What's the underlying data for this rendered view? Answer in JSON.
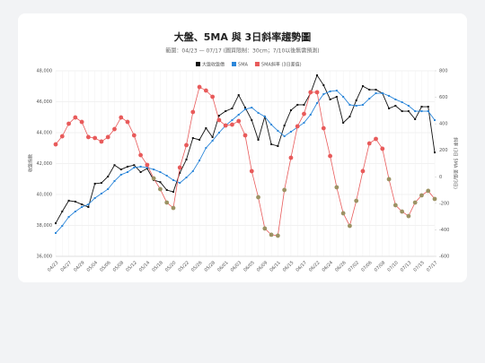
{
  "chart_data": {
    "type": "line",
    "title": "大盤、5MA 與 3日斜率趨勢圖",
    "subtitle": "範圍：04/23 — 07/17 (圖資限制：30cm；7/10以後無需預測)",
    "y_label": "收盤指數",
    "y2_label": "斜率 (3日 5MA 差值/3日)",
    "categories": [
      "04/23",
      null,
      "04/27",
      null,
      "04/29",
      null,
      "05/04",
      null,
      "05/06",
      null,
      "05/08",
      null,
      "05/12",
      null,
      "05/14",
      null,
      "05/18",
      null,
      "05/20",
      null,
      "05/22",
      null,
      "05/26",
      null,
      "05/28",
      null,
      "06/01",
      null,
      "06/03",
      null,
      "06/05",
      null,
      "06/09",
      null,
      "06/11",
      null,
      "06/15",
      null,
      "06/17",
      null,
      "06/22",
      null,
      "06/24",
      null,
      "06/26",
      null,
      "07/02",
      null,
      "07/06",
      null,
      "07/08",
      null,
      "07/10",
      null,
      "07/13",
      null,
      "07/15",
      null,
      "07/17"
    ],
    "series": [
      {
        "name": "大盤收盤價",
        "color": "#111111",
        "values": [
          38140,
          38900,
          39600,
          39540,
          39360,
          39190,
          40700,
          40750,
          41160,
          41900,
          41620,
          41800,
          41900,
          41450,
          41680,
          40930,
          40800,
          40290,
          40170,
          41400,
          42260,
          43650,
          43540,
          44290,
          43710,
          45100,
          45390,
          45570,
          46430,
          45620,
          44810,
          43540,
          45040,
          43250,
          43130,
          44460,
          45450,
          45800,
          45800,
          46550,
          47710,
          47070,
          46150,
          46320,
          44640,
          45040,
          46090,
          47010,
          46780,
          46780,
          46550,
          45570,
          45740,
          45390,
          45390,
          44870,
          45680,
          45680,
          42720
        ]
      },
      {
        "name": "5MA",
        "color": "#2b86d9",
        "values": [
          37510,
          37970,
          38550,
          38900,
          39190,
          39360,
          39770,
          40060,
          40350,
          40870,
          41280,
          41450,
          41740,
          41800,
          41740,
          41620,
          41450,
          41220,
          40930,
          40750,
          41100,
          41510,
          42200,
          43010,
          43480,
          44000,
          44460,
          44810,
          45160,
          45510,
          45620,
          45280,
          45040,
          44520,
          44120,
          43770,
          44060,
          44350,
          44640,
          45160,
          45910,
          46490,
          46670,
          46720,
          46320,
          45800,
          45740,
          45800,
          46200,
          46550,
          46550,
          46380,
          46150,
          45970,
          45740,
          45390,
          45390,
          45390,
          44810
        ]
      },
      {
        "name": "5MA斜率 (3日差值)",
        "color": "#e85a5a",
        "negative_color": "#9c9264",
        "axis": "y2",
        "values": [
          245,
          306,
          401,
          448,
          414,
          300,
          293,
          266,
          300,
          360,
          448,
          414,
          313,
          164,
          90,
          -12,
          -93,
          -194,
          -235,
          70,
          239,
          489,
          678,
          651,
          604,
          428,
          387,
          394,
          421,
          313,
          43,
          -154,
          -390,
          -437,
          -444,
          -99,
          144,
          381,
          475,
          638,
          638,
          367,
          157,
          -79,
          -275,
          -370,
          -181,
          43,
          252,
          286,
          212,
          -18,
          -214,
          -262,
          -296,
          -194,
          -140,
          -106,
          -167
        ]
      }
    ],
    "ylim": [
      36000,
      48000
    ],
    "yticks": [
      {
        "value": 36000,
        "label": "36,000"
      },
      {
        "value": 38000,
        "label": "38,000"
      },
      {
        "value": 40000,
        "label": "40,000"
      },
      {
        "value": 42000,
        "label": "42,000"
      },
      {
        "value": 44000,
        "label": "44,000"
      },
      {
        "value": 46000,
        "label": "46,000"
      },
      {
        "value": 48000,
        "label": "48,000"
      }
    ],
    "y2lim": [
      -600,
      800
    ],
    "y2ticks": [
      -600,
      -400,
      -200,
      0,
      200,
      400,
      600,
      800
    ],
    "grid": true
  }
}
